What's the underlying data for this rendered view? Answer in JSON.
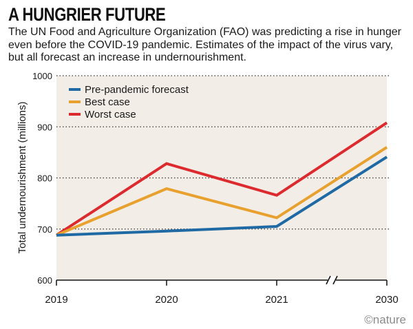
{
  "headline": "A HUNGRIER FUTURE",
  "subtitle": "The UN Food and Agriculture Organization (FAO) was predicting a rise in hunger even before the COVID-19 pandemic. Estimates of the impact of the virus vary, but all forecast an increase in undernourishment.",
  "credit": "©nature",
  "colors": {
    "plot_bg": "#f2ede6",
    "pre_pandemic": "#1f6aa5",
    "best_case": "#e8a02e",
    "worst_case": "#dd2a2f"
  },
  "chart_data": {
    "type": "line",
    "title": "A HUNGRIER FUTURE",
    "xlabel": "",
    "ylabel": "Total undernourishment (millions)",
    "categories": [
      "2019",
      "2020",
      "2021",
      "2030"
    ],
    "ylim": [
      600,
      1000
    ],
    "yticks": [
      600,
      700,
      800,
      900,
      1000
    ],
    "grid": true,
    "axis_break": "between 2021 and 2030",
    "legend_position": "top-left",
    "series": [
      {
        "name": "Pre-pandemic forecast",
        "color": "#1f6aa5",
        "values": [
          688,
          696,
          705,
          841
        ]
      },
      {
        "name": "Best case",
        "color": "#e8a02e",
        "values": [
          688,
          779,
          722,
          860
        ]
      },
      {
        "name": "Worst case",
        "color": "#dd2a2f",
        "values": [
          688,
          828,
          766,
          908
        ]
      }
    ]
  }
}
